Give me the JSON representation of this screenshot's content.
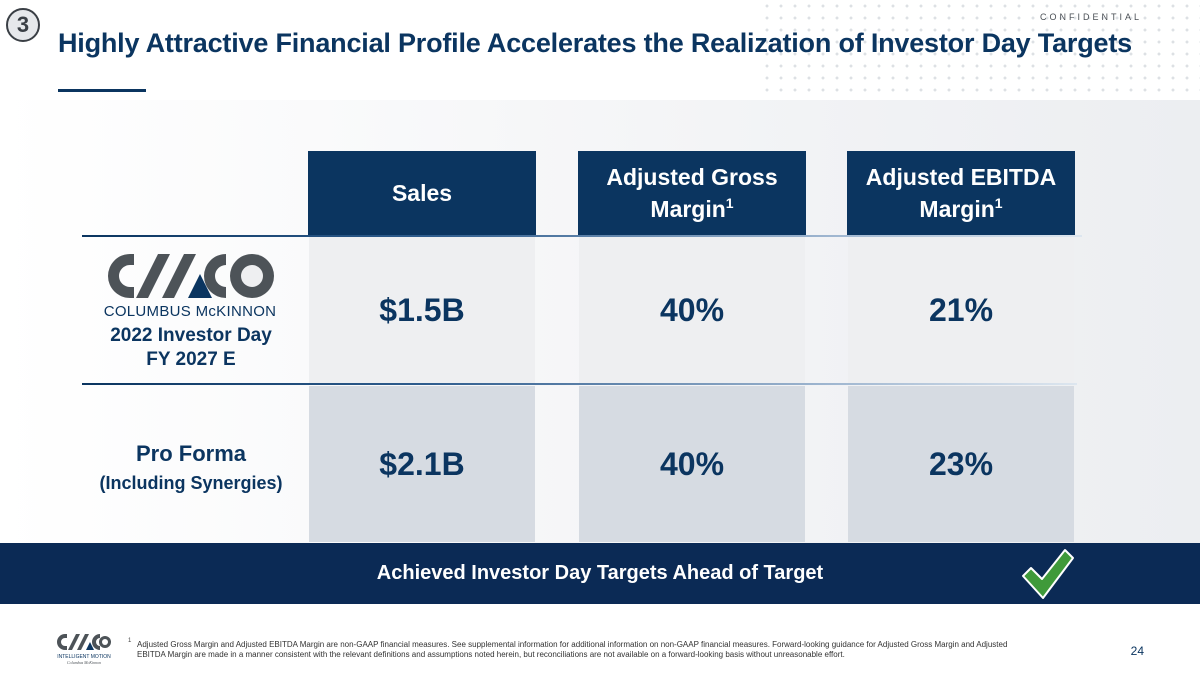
{
  "header": {
    "step_number": "3",
    "confidential": "CONFIDENTIAL",
    "title": "Highly Attractive Financial Profile Accelerates the Realization of Investor Day Targets"
  },
  "columns": [
    {
      "label": "Sales",
      "sup": ""
    },
    {
      "label": "Adjusted Gross Margin",
      "sup": "1"
    },
    {
      "label": "Adjusted EBITDA Margin",
      "sup": "1"
    }
  ],
  "rows": [
    {
      "logo_text_part1": "COLUMBUS ",
      "logo_text_part2": "McKINNON",
      "label_line1": "2022 Investor Day",
      "label_line2": "FY 2027 E",
      "values": [
        "$1.5B",
        "40%",
        "21%"
      ]
    },
    {
      "label_line1": "Pro Forma",
      "label_line2": "(Including Synergies)",
      "values": [
        "$2.1B",
        "40%",
        "23%"
      ]
    }
  ],
  "banner": {
    "text": "Achieved Investor Day Targets Ahead of Target"
  },
  "footer": {
    "footnote_number": "1",
    "footnote": "Adjusted Gross Margin and Adjusted EBITDA Margin are non-GAAP financial measures. See supplemental information for additional information on non-GAAP financial measures. Forward-looking guidance for Adjusted Gross Margin and Adjusted EBITDA Margin are made in a manner consistent with the relevant definitions and assumptions noted herein, but reconciliations are not available on a forward-looking basis without unreasonable effort.",
    "logo_line1": "INTELLIGENT MOTION",
    "logo_line2": "Columbus McKinnon",
    "page_number": "24"
  },
  "colors": {
    "navy": "#0b3560",
    "banner": "#0b2a55",
    "check": "#3f9a3a",
    "logo_gray": "#4d5358"
  }
}
